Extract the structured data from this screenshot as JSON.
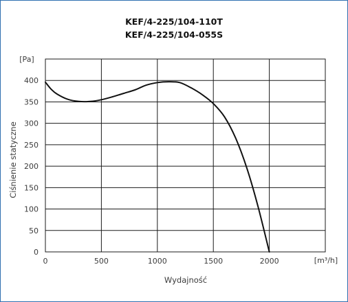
{
  "chart_data": {
    "type": "line",
    "title": "KEF/4-225/104-110T",
    "subtitle": "KEF/4-225/104-055S",
    "xlabel": "Wydajność",
    "ylabel": "Ciśnienie statyczne",
    "x_unit": "[m³/h]",
    "y_unit": "[Pa]",
    "xlim": [
      0,
      2000
    ],
    "ylim": [
      0,
      450
    ],
    "x_ticks": [
      0,
      500,
      1000,
      1500,
      2000
    ],
    "y_ticks": [
      0,
      50,
      100,
      150,
      200,
      250,
      300,
      350,
      400
    ],
    "x_tick_labels": [
      "0",
      "500",
      "1000",
      "1500",
      "2000"
    ],
    "y_tick_labels": [
      "0",
      "50",
      "100",
      "150",
      "200",
      "250",
      "300",
      "350",
      "400"
    ],
    "grid": true,
    "series": [
      {
        "x": [
          0,
          50,
          100,
          200,
          300,
          400,
          500,
          600,
          700,
          800,
          900,
          1000,
          1100,
          1200,
          1300,
          1400,
          1500,
          1600,
          1700,
          1800,
          1900,
          2000
        ],
        "y": [
          396,
          380,
          369,
          356,
          351,
          351,
          355,
          362,
          370,
          378,
          389,
          395,
          397,
          395,
          383,
          367,
          346,
          315,
          265,
          195,
          105,
          0
        ]
      }
    ],
    "colors": {
      "line": "#111111",
      "grid": "#1a1a1a",
      "frame": "#2f6fb0"
    }
  }
}
